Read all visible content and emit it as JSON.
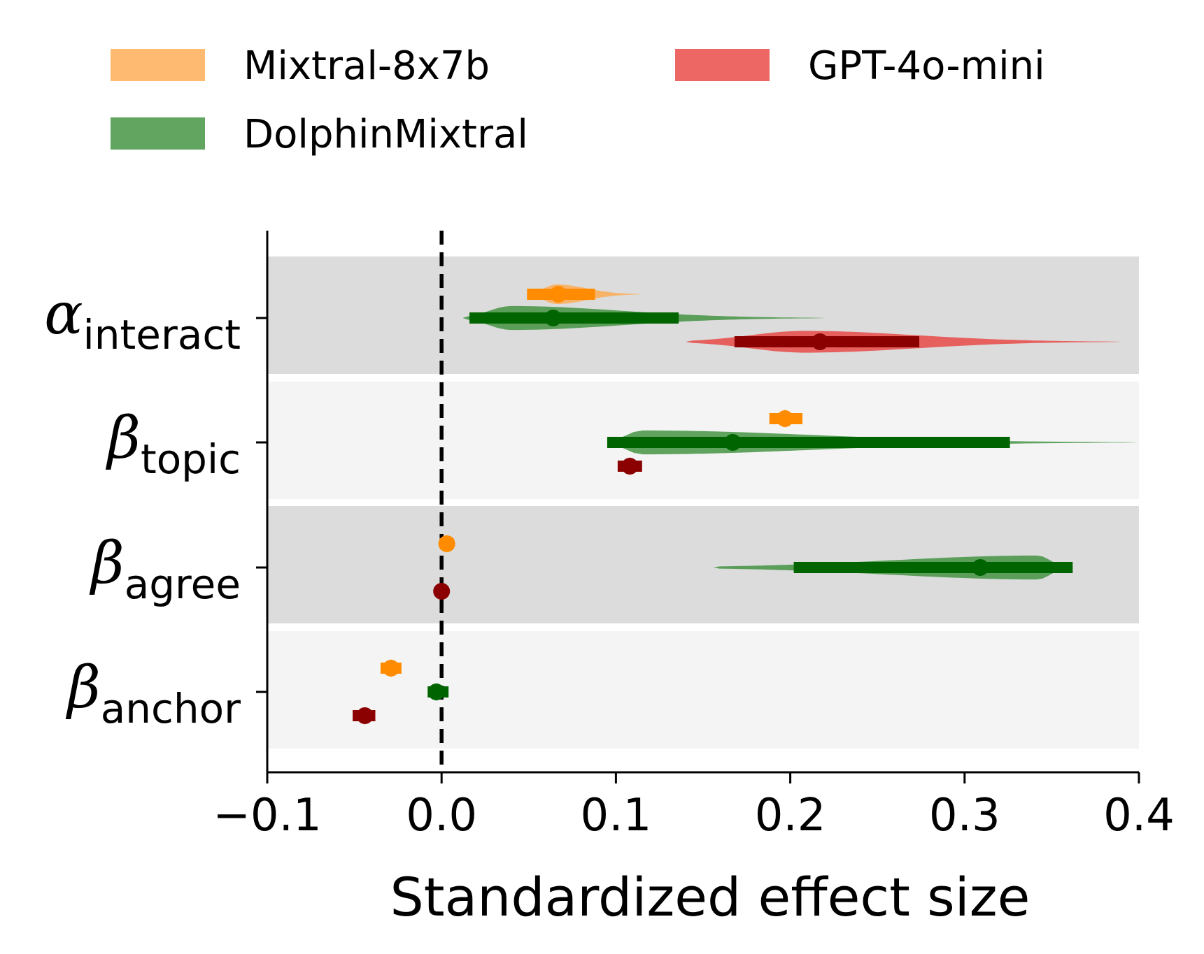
{
  "chart_data": {
    "type": "violin-interval",
    "xlabel": "Standardized effect size",
    "xlim": [
      -0.1,
      0.4
    ],
    "xticks": [
      -0.1,
      0.0,
      0.1,
      0.2,
      0.3,
      0.4
    ],
    "xtick_labels": [
      "−0.1",
      "0.0",
      "0.1",
      "0.2",
      "0.3",
      "0.4"
    ],
    "reference_line": 0.0,
    "legend": {
      "position": "top",
      "entries": [
        "Mixtral-8x7b",
        "DolphinMixtral",
        "GPT-4o-mini"
      ]
    },
    "parameters": [
      {
        "symbol": "α",
        "subscript": "interact"
      },
      {
        "symbol": "β",
        "subscript": "topic"
      },
      {
        "symbol": "β",
        "subscript": "agree"
      },
      {
        "symbol": "β",
        "subscript": "anchor"
      }
    ],
    "series": [
      {
        "name": "Mixtral-8x7b",
        "light_color": "#ffa94d",
        "dark_color": "#ff8c00",
        "estimates": [
          {
            "parameter": "interact",
            "median": 0.067,
            "interval": [
              0.049,
              0.088
            ],
            "density_range": [
              0.05,
              0.115
            ],
            "density_peak": 0.066,
            "density_width": 0.45
          },
          {
            "parameter": "topic",
            "median": 0.197,
            "interval": [
              0.188,
              0.207
            ],
            "density_range": [
              0.19,
              0.205
            ],
            "density_peak": 0.197,
            "density_width": 0.4
          },
          {
            "parameter": "agree",
            "median": 0.003,
            "interval": [
              -0.001,
              0.007
            ],
            "density_range": [
              -0.002,
              0.008
            ],
            "density_peak": 0.003,
            "density_width": 0.4
          },
          {
            "parameter": "anchor",
            "median": -0.029,
            "interval": [
              -0.035,
              -0.023
            ],
            "density_range": [
              -0.034,
              -0.024
            ],
            "density_peak": -0.029,
            "density_width": 0.4
          }
        ]
      },
      {
        "name": "DolphinMixtral",
        "light_color": "#3a8f3a",
        "dark_color": "#006400",
        "estimates": [
          {
            "parameter": "interact",
            "median": 0.064,
            "interval": [
              0.016,
              0.136
            ],
            "density_range": [
              0.012,
              0.22
            ],
            "density_peak": 0.04,
            "density_width": 0.55
          },
          {
            "parameter": "topic",
            "median": 0.167,
            "interval": [
              0.095,
              0.326
            ],
            "density_range": [
              0.095,
              0.4
            ],
            "density_peak": 0.115,
            "density_width": 0.55
          },
          {
            "parameter": "agree",
            "median": 0.309,
            "interval": [
              0.202,
              0.362
            ],
            "density_range": [
              0.156,
              0.362
            ],
            "density_peak": 0.342,
            "density_width": 0.55
          },
          {
            "parameter": "anchor",
            "median": -0.003,
            "interval": [
              -0.008,
              0.004
            ],
            "density_range": [
              -0.007,
              0.002
            ],
            "density_peak": -0.003,
            "density_width": 0.4
          }
        ]
      },
      {
        "name": "GPT-4o-mini",
        "light_color": "#e8413f",
        "dark_color": "#8b0000",
        "estimates": [
          {
            "parameter": "interact",
            "median": 0.217,
            "interval": [
              0.168,
              0.274
            ],
            "density_range": [
              0.14,
              0.39
            ],
            "density_peak": 0.208,
            "density_width": 0.5
          },
          {
            "parameter": "topic",
            "median": 0.108,
            "interval": [
              0.101,
              0.115
            ],
            "density_range": [
              0.104,
              0.112
            ],
            "density_peak": 0.108,
            "density_width": 0.4
          },
          {
            "parameter": "agree",
            "median": 0.0,
            "interval": [
              -0.002,
              0.002
            ],
            "density_range": [
              -0.002,
              0.002
            ],
            "density_peak": 0.0,
            "density_width": 0.3
          },
          {
            "parameter": "anchor",
            "median": -0.044,
            "interval": [
              -0.051,
              -0.038
            ],
            "density_range": [
              -0.047,
              -0.041
            ],
            "density_peak": -0.044,
            "density_width": 0.4
          }
        ]
      }
    ]
  }
}
